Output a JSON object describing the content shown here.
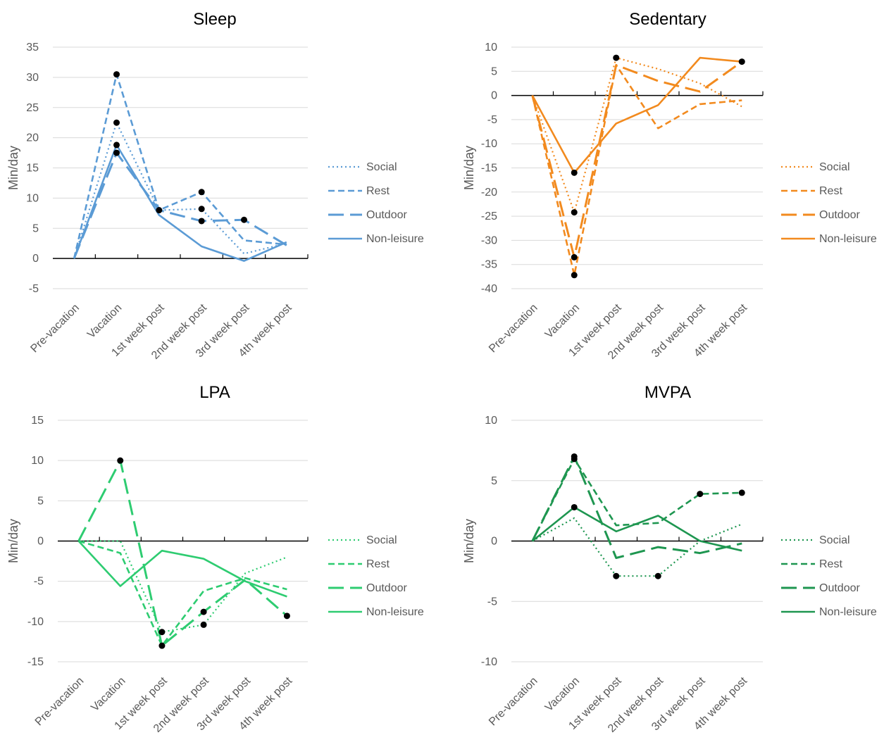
{
  "chart_data": [
    {
      "type": "line",
      "title": "Sleep",
      "ylabel": "Min/day",
      "categories": [
        "Pre-vacation",
        "Vacation",
        "1st week post",
        "2nd week post",
        "3rd week post",
        "4th week post"
      ],
      "ylim": [
        -5,
        35
      ],
      "yticks": [
        -5,
        0,
        5,
        10,
        15,
        20,
        25,
        30,
        35
      ],
      "grid": true,
      "legend": "right",
      "color": "#5B9BD5",
      "series": [
        {
          "name": "Social",
          "values": [
            0,
            22.5,
            8.0,
            8.2,
            0.8,
            2.5
          ],
          "significant": [
            false,
            true,
            false,
            true,
            false,
            false
          ]
        },
        {
          "name": "Rest",
          "values": [
            0,
            30.5,
            8.0,
            11.0,
            3.0,
            2.3
          ],
          "significant": [
            false,
            true,
            true,
            true,
            false,
            false
          ]
        },
        {
          "name": "Outdoor",
          "values": [
            0,
            17.5,
            8.0,
            6.2,
            6.4,
            2.2
          ],
          "significant": [
            false,
            true,
            false,
            true,
            true,
            false
          ]
        },
        {
          "name": "Non-leisure",
          "values": [
            0,
            18.8,
            7.2,
            2.0,
            -0.4,
            2.7
          ],
          "significant": [
            false,
            true,
            false,
            false,
            false,
            false
          ]
        }
      ]
    },
    {
      "type": "line",
      "title": "Sedentary",
      "ylabel": "Min/day",
      "categories": [
        "Pre-vacation",
        "Vacation",
        "1st week post",
        "2nd week post",
        "3rd week post",
        "4th week post"
      ],
      "ylim": [
        -40,
        10
      ],
      "yticks": [
        -40,
        -35,
        -30,
        -25,
        -20,
        -15,
        -10,
        -5,
        0,
        5,
        10
      ],
      "grid": true,
      "legend": "right",
      "color": "#F28A1E",
      "series": [
        {
          "name": "Social",
          "values": [
            0,
            -24.2,
            7.8,
            5.5,
            2.5,
            -2.3
          ],
          "significant": [
            false,
            true,
            true,
            false,
            false,
            false
          ]
        },
        {
          "name": "Rest",
          "values": [
            0,
            -37.2,
            6.3,
            -6.8,
            -1.8,
            -1.0
          ],
          "significant": [
            false,
            true,
            false,
            false,
            false,
            false
          ]
        },
        {
          "name": "Outdoor",
          "values": [
            0,
            -33.5,
            6.3,
            3.0,
            0.8,
            7.0
          ],
          "significant": [
            false,
            true,
            false,
            false,
            false,
            true
          ]
        },
        {
          "name": "Non-leisure",
          "values": [
            0,
            -16.0,
            -5.8,
            -2.0,
            7.8,
            7.0
          ],
          "significant": [
            false,
            true,
            false,
            false,
            false,
            false
          ]
        }
      ]
    },
    {
      "type": "line",
      "title": "LPA",
      "ylabel": "Min/day",
      "categories": [
        "Pre-vacation",
        "Vacation",
        "1st week post",
        "2nd week post",
        "3rd week post",
        "4th week post"
      ],
      "ylim": [
        -15,
        15
      ],
      "yticks": [
        -15,
        -10,
        -5,
        0,
        5,
        10,
        15
      ],
      "grid": true,
      "legend": "right",
      "color": "#2ECC71",
      "series": [
        {
          "name": "Social",
          "values": [
            0,
            0,
            -11.3,
            -10.4,
            -4.0,
            -2.0
          ],
          "significant": [
            false,
            false,
            true,
            true,
            false,
            false
          ]
        },
        {
          "name": "Rest",
          "values": [
            0,
            -1.5,
            -13.0,
            -6.2,
            -4.6,
            -6.0
          ],
          "significant": [
            false,
            false,
            false,
            false,
            false,
            false
          ]
        },
        {
          "name": "Outdoor",
          "values": [
            0,
            10.0,
            -13.0,
            -8.8,
            -4.8,
            -9.3
          ],
          "significant": [
            false,
            true,
            true,
            true,
            false,
            true
          ]
        },
        {
          "name": "Non-leisure",
          "values": [
            0,
            -5.6,
            -1.2,
            -2.2,
            -5.0,
            -6.9
          ],
          "significant": [
            false,
            false,
            false,
            false,
            false,
            false
          ]
        }
      ]
    },
    {
      "type": "line",
      "title": "MVPA",
      "ylabel": "Min/day",
      "categories": [
        "Pre-vacation",
        "Vacation",
        "1st week post",
        "2nd week post",
        "3rd week post",
        "4th week post"
      ],
      "ylim": [
        -10,
        10
      ],
      "yticks": [
        -10,
        -5,
        0,
        5,
        10
      ],
      "grid": true,
      "legend": "right",
      "color": "#1E9650",
      "series": [
        {
          "name": "Social",
          "values": [
            0,
            1.9,
            -2.9,
            -2.9,
            0.0,
            1.4
          ],
          "significant": [
            false,
            false,
            true,
            true,
            false,
            false
          ]
        },
        {
          "name": "Rest",
          "values": [
            0,
            6.8,
            1.3,
            1.5,
            3.9,
            4.0
          ],
          "significant": [
            false,
            true,
            false,
            false,
            true,
            true
          ]
        },
        {
          "name": "Outdoor",
          "values": [
            0,
            7.0,
            -1.4,
            -0.5,
            -1.0,
            -0.2
          ],
          "significant": [
            false,
            true,
            false,
            false,
            false,
            false
          ]
        },
        {
          "name": "Non-leisure",
          "values": [
            0,
            2.8,
            0.8,
            2.1,
            0.0,
            -0.8
          ],
          "significant": [
            false,
            true,
            false,
            false,
            false,
            false
          ]
        }
      ]
    }
  ]
}
